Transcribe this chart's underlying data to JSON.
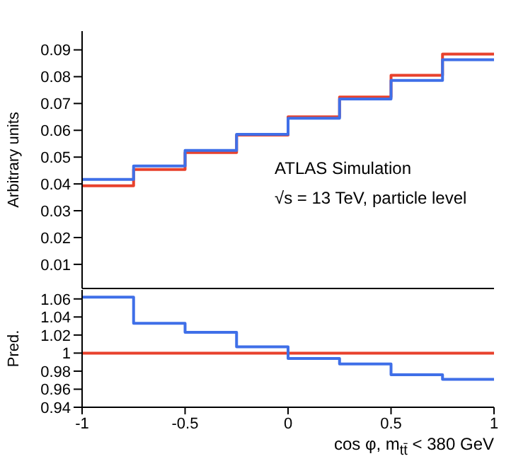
{
  "chart_data": [
    {
      "type": "histogram",
      "ylabel": "Arbitrary units",
      "bins": [
        -1,
        -0.75,
        -0.5,
        -0.25,
        0,
        0.25,
        0.5,
        0.75,
        1
      ],
      "xlim": [
        -1,
        1
      ],
      "xticks": [
        -1,
        -0.5,
        0,
        0.5,
        1
      ],
      "ylim": [
        0.001,
        0.097
      ],
      "yticks": [
        0.01,
        0.02,
        0.03,
        0.04,
        0.05,
        0.06,
        0.07,
        0.08,
        0.09
      ],
      "tick_labels": "y",
      "grid": false,
      "legend": false,
      "series": [
        {
          "color": "#e8412c",
          "values": [
            0.0393,
            0.0454,
            0.0517,
            0.0582,
            0.065,
            0.0724,
            0.0805,
            0.0884
          ]
        },
        {
          "color": "#3f6fe8",
          "values": [
            0.0417,
            0.0467,
            0.0525,
            0.0585,
            0.0645,
            0.0717,
            0.0786,
            0.0863
          ]
        }
      ],
      "annotations": [
        "ATLAS Simulation",
        "√s = 13 TeV, particle level"
      ]
    },
    {
      "type": "histogram",
      "ylabel": "Pred.",
      "xlabel": "cos φ, m$_{tt̄}$ < 380 GeV",
      "bins": [
        -1,
        -0.75,
        -0.5,
        -0.25,
        0,
        0.25,
        0.5,
        0.75,
        1
      ],
      "xlim": [
        -1,
        1
      ],
      "xticks": [
        -1,
        -0.5,
        0,
        0.5,
        1
      ],
      "ylim": [
        0.94,
        1.07
      ],
      "yticks": [
        0.94,
        0.96,
        0.98,
        1,
        1.02,
        1.04,
        1.06
      ],
      "grid": false,
      "legend": false,
      "series": [
        {
          "color": "#e8412c",
          "values": [
            1,
            1,
            1,
            1,
            1,
            1,
            1,
            1
          ]
        },
        {
          "color": "#3f6fe8",
          "values": [
            1.062,
            1.033,
            1.023,
            1.007,
            0.994,
            0.988,
            0.976,
            0.971
          ]
        }
      ]
    }
  ]
}
